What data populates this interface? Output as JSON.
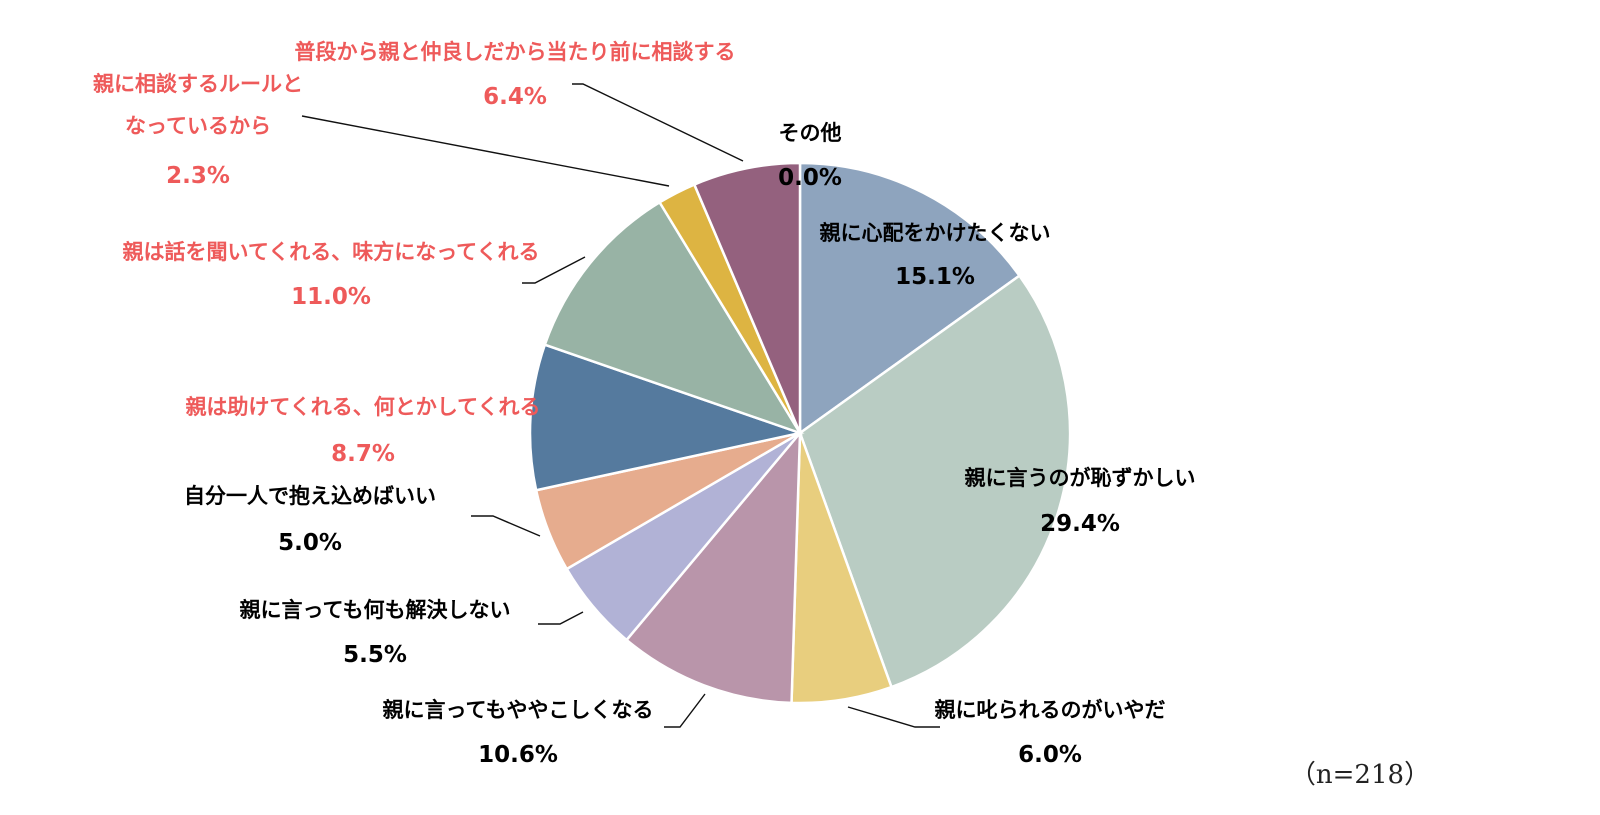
{
  "chart_data": {
    "type": "pie",
    "start_angle_deg": 0,
    "direction": "clockwise",
    "slices": [
      {
        "label": "親に心配をかけたくない",
        "value": 15.1,
        "value_text": "15.1%",
        "color": "#8EA4BE",
        "label_color": "#000000"
      },
      {
        "label": "親に言うのが恥ずかしい",
        "value": 29.4,
        "value_text": "29.4%",
        "color": "#B9CCC3",
        "label_color": "#000000"
      },
      {
        "label": "親に叱られるのがいやだ",
        "value": 6.0,
        "value_text": "6.0%",
        "color": "#E8CE7E",
        "label_color": "#000000"
      },
      {
        "label": "親に言ってもややこしくなる",
        "value": 10.6,
        "value_text": "10.6%",
        "color": "#B995AA",
        "label_color": "#000000"
      },
      {
        "label": "親に言っても何も解決しない",
        "value": 5.5,
        "value_text": "5.5%",
        "color": "#B1B2D6",
        "label_color": "#000000"
      },
      {
        "label": "自分一人で抱え込めばいい",
        "value": 5.0,
        "value_text": "5.0%",
        "color": "#E6AC8E",
        "label_color": "#000000"
      },
      {
        "label": "親は助けてくれる、何とかしてくれる",
        "value": 8.7,
        "value_text": "8.7%",
        "color": "#557A9E",
        "label_color": "#EE5A5A"
      },
      {
        "label": "親は話を聞いてくれる、味方になってくれる",
        "value": 11.0,
        "value_text": "11.0%",
        "color": "#98B3A5",
        "label_color": "#EE5A5A"
      },
      {
        "label": "親に相談するルールとなっているから",
        "label_lines": [
          "親に相談するルールと",
          "なっているから"
        ],
        "value": 2.3,
        "value_text": "2.3%",
        "color": "#DDB442",
        "label_color": "#EE5A5A"
      },
      {
        "label": "普段から親と仲良しだから当たり前に相談する",
        "value": 6.4,
        "value_text": "6.4%",
        "color": "#94617E",
        "label_color": "#EE5A5A"
      },
      {
        "label": "その他",
        "value": 0.0,
        "value_text": "0.0%",
        "color": "#CCCCCC",
        "label_color": "#000000"
      }
    ],
    "note": "（n=218）"
  }
}
